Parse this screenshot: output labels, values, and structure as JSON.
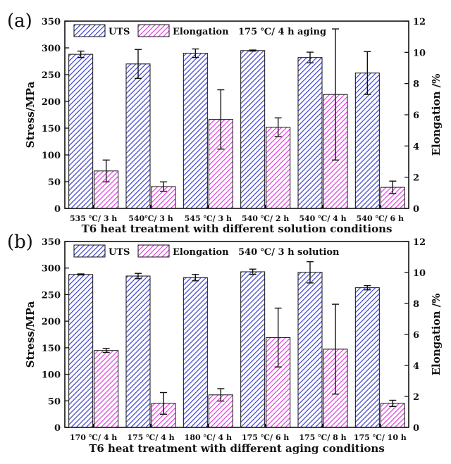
{
  "chart_data": [
    {
      "type": "bar",
      "panel": "(a)",
      "xlabel": "T6 heat treatment with different solution conditions",
      "ylabel": "Stress/MPa",
      "y2label": "Elongation /%",
      "ylim": [
        0,
        350
      ],
      "y2lim": [
        0,
        12
      ],
      "yticks": [
        0,
        50,
        100,
        150,
        200,
        250,
        300,
        350
      ],
      "y2ticks": [
        0,
        2,
        4,
        6,
        8,
        10,
        12
      ],
      "legend_position": "top",
      "legend_note": "175 ℃/ 4 h aging",
      "categories": [
        "535 ℃/ 3 h",
        "540℃/ 3 h",
        "545 ℃/ 3 h",
        "540 ℃/ 2 h",
        "540 ℃/ 4 h",
        "540 ℃/ 6 h"
      ],
      "series": [
        {
          "name": "UTS",
          "axis": "left",
          "color": "#3a3fd0",
          "values": [
            288,
            270,
            290,
            295,
            282,
            253
          ],
          "errors": [
            6,
            27,
            8,
            1,
            10,
            40
          ]
        },
        {
          "name": "Elongation",
          "axis": "right",
          "color": "#e23be0",
          "values": [
            2.4,
            1.4,
            5.7,
            5.2,
            7.3,
            1.35
          ],
          "errors": [
            0.7,
            0.3,
            1.9,
            0.6,
            4.2,
            0.4
          ]
        }
      ]
    },
    {
      "type": "bar",
      "panel": "(b)",
      "xlabel": "T6 heat treatment with different aging conditions",
      "ylabel": "Stress/MPa",
      "y2label": "Elongation /%",
      "ylim": [
        0,
        350
      ],
      "y2lim": [
        0,
        12
      ],
      "yticks": [
        0,
        50,
        100,
        150,
        200,
        250,
        300,
        350
      ],
      "y2ticks": [
        0,
        2,
        4,
        6,
        8,
        10,
        12
      ],
      "legend_position": "top",
      "legend_note": "540 ℃/ 3 h solution",
      "categories": [
        "170 ℃/ 4 h",
        "175 ℃/ 4 h",
        "180 ℃/ 4 h",
        "175 ℃/ 6 h",
        "175 ℃/ 8 h",
        "175 ℃/ 10 h"
      ],
      "series": [
        {
          "name": "UTS",
          "axis": "left",
          "color": "#3a3fd0",
          "values": [
            288,
            285,
            282,
            293,
            292,
            263
          ],
          "errors": [
            1,
            5,
            6,
            5,
            20,
            4
          ]
        },
        {
          "name": "Elongation",
          "axis": "right",
          "color": "#e23be0",
          "values": [
            4.97,
            1.55,
            2.1,
            5.8,
            5.05,
            1.55
          ],
          "errors": [
            0.13,
            0.7,
            0.4,
            1.9,
            2.9,
            0.2
          ]
        }
      ]
    }
  ]
}
